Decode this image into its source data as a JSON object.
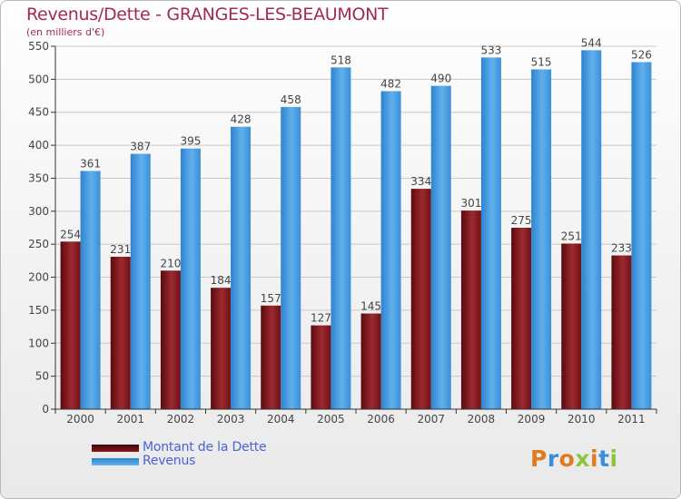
{
  "chart_data": {
    "type": "bar",
    "title": "Revenus/Dette - GRANGES-LES-BEAUMONT",
    "subtitle": "(en milliers d'€)",
    "categories": [
      "2000",
      "2001",
      "2002",
      "2003",
      "2004",
      "2005",
      "2006",
      "2007",
      "2008",
      "2009",
      "2010",
      "2011"
    ],
    "series": [
      {
        "name": "Montant de la Dette",
        "color": "#8b1a1f",
        "values": [
          254,
          231,
          210,
          184,
          157,
          127,
          145,
          334,
          301,
          275,
          251,
          233
        ]
      },
      {
        "name": "Revenus",
        "color": "#3f97dd",
        "values": [
          361,
          387,
          395,
          428,
          458,
          518,
          482,
          490,
          533,
          515,
          544,
          526
        ]
      }
    ],
    "ylim": [
      0,
      550
    ],
    "yticks": [
      0,
      50,
      100,
      150,
      200,
      250,
      300,
      350,
      400,
      450,
      500,
      550
    ],
    "grid": true,
    "legend_position": "bottom-left"
  },
  "logo": {
    "letters": [
      "P",
      "r",
      "o",
      "x",
      "i",
      "t",
      "i"
    ],
    "colors": [
      "#e07b1f",
      "#3b8fd8",
      "#e07b1f",
      "#8cc63f",
      "#e07b1f",
      "#3b8fd8",
      "#8cc63f"
    ]
  }
}
